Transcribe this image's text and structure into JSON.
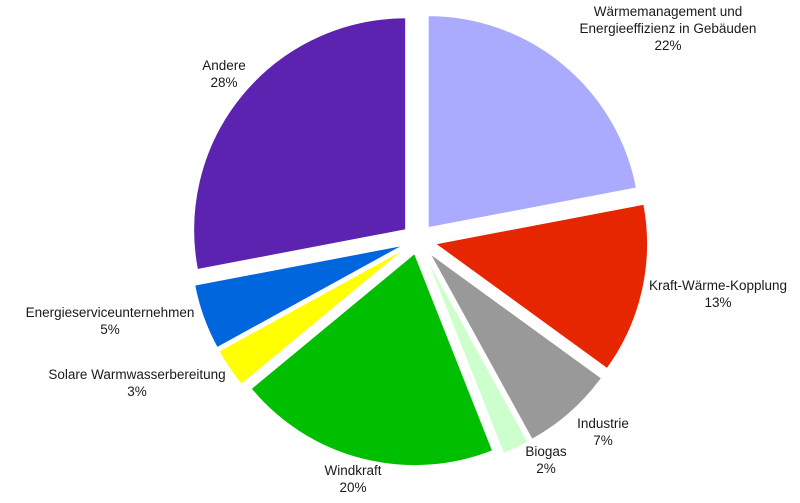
{
  "chart_data": {
    "type": "pie",
    "start_angle_deg": 0,
    "direction": "clockwise",
    "slices": [
      {
        "label_lines": [
          "Wärmemanagement und",
          "Energieeffizienz in Gebäuden"
        ],
        "value": 22,
        "value_label": "22%",
        "color": "#aaaaff"
      },
      {
        "label_lines": [
          "Kraft-Wärme-Kopplung"
        ],
        "value": 13,
        "value_label": "13%",
        "color": "#e62600"
      },
      {
        "label_lines": [
          "Industrie"
        ],
        "value": 7,
        "value_label": "7%",
        "color": "#999999"
      },
      {
        "label_lines": [
          "Biogas"
        ],
        "value": 2,
        "value_label": "2%",
        "color": "#ccffcc"
      },
      {
        "label_lines": [
          "Windkraft"
        ],
        "value": 20,
        "value_label": "20%",
        "color": "#00bf00"
      },
      {
        "label_lines": [
          "Solare Warmwasserbereitung"
        ],
        "value": 3,
        "value_label": "3%",
        "color": "#ffff00"
      },
      {
        "label_lines": [
          "Energieserviceunternehmen"
        ],
        "value": 5,
        "value_label": "5%",
        "color": "#0066dd"
      },
      {
        "label_lines": [
          "Andere"
        ],
        "value": 28,
        "value_label": "28%",
        "color": "#5c22b0"
      }
    ]
  }
}
